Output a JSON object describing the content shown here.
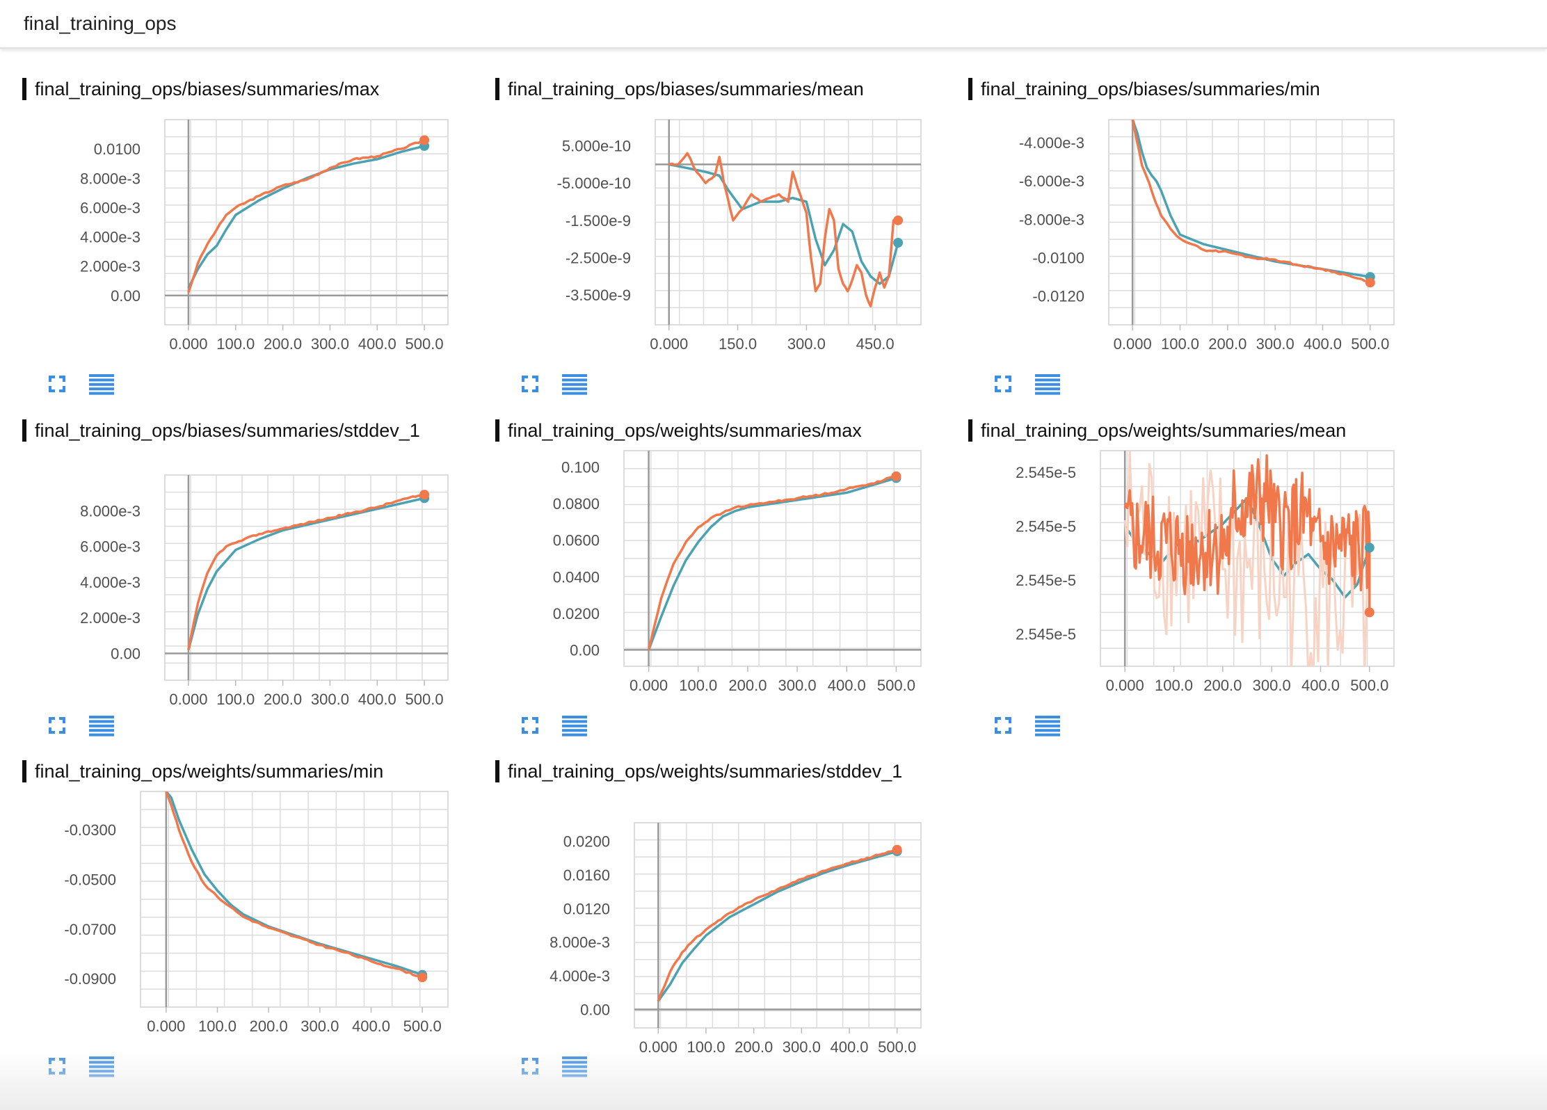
{
  "header": {
    "title": "final_training_ops"
  },
  "colors": {
    "run_a": "#f0784b",
    "run_b": "#4ba2b3",
    "icon": "#3c8ee0",
    "grid": "#dcdcdc",
    "axis": "#999999",
    "smooth_raw": "#f8d2c2"
  },
  "icons": {
    "expand": "fullscreen-icon",
    "data": "data-table-icon"
  },
  "cards": [
    {
      "title": "final_training_ops/biases/summaries/max",
      "x_ticks": [
        "0.000",
        "100.0",
        "200.0",
        "300.0",
        "400.0",
        "500.0"
      ],
      "y_ticks": [
        "0.0100",
        "8.000e-3",
        "6.000e-3",
        "4.000e-3",
        "2.000e-3",
        "0.00"
      ],
      "chart_data": {
        "type": "line",
        "xlim": [
          -50,
          550
        ],
        "ylim": [
          -0.002,
          0.012
        ],
        "y_tick_values": [
          0.01,
          0.008,
          0.006,
          0.004,
          0.002,
          0
        ],
        "x_tick_values": [
          0,
          100,
          200,
          300,
          400,
          500
        ],
        "noisy": false,
        "series": [
          {
            "color_key": "run_b",
            "x": [
              0,
              20,
              40,
              60,
              80,
              100,
              150,
              200,
              250,
              300,
              350,
              400,
              450,
              500
            ],
            "y": [
              0.0005,
              0.0018,
              0.0028,
              0.0034,
              0.0045,
              0.0055,
              0.0065,
              0.0073,
              0.008,
              0.0086,
              0.009,
              0.0093,
              0.0098,
              0.0102
            ]
          },
          {
            "color_key": "run_a",
            "x": [
              0,
              20,
              40,
              60,
              80,
              100,
              150,
              200,
              250,
              300,
              350,
              400,
              450,
              500
            ],
            "y": [
              0.0002,
              0.0022,
              0.0035,
              0.0045,
              0.0055,
              0.006,
              0.0068,
              0.0075,
              0.0079,
              0.0087,
              0.0093,
              0.0095,
              0.01,
              0.0106
            ]
          }
        ]
      }
    },
    {
      "title": "final_training_ops/biases/summaries/mean",
      "x_ticks": [
        "0.000",
        "150.0",
        "300.0",
        "450.0"
      ],
      "y_ticks": [
        "5.000e-10",
        "-5.000e-10",
        "-1.500e-9",
        "-2.500e-9",
        "-3.500e-9"
      ],
      "chart_data": {
        "type": "line",
        "xlim": [
          -30,
          550
        ],
        "ylim": [
          -4.3e-09,
          1.2e-09
        ],
        "y_tick_values": [
          5e-10,
          -5e-10,
          -1.5e-09,
          -2.5e-09,
          -3.5e-09
        ],
        "x_tick_values": [
          0,
          150,
          300,
          450
        ],
        "noisy": false,
        "series": [
          {
            "color_key": "run_b",
            "x": [
              0,
              40,
              80,
              110,
              130,
              160,
              200,
              240,
              270,
              300,
              320,
              340,
              360,
              380,
              400,
              420,
              440,
              460,
              480,
              500
            ],
            "y": [
              0.0,
              -1e-10,
              -2e-10,
              -3e-10,
              -7e-10,
              -1.2e-09,
              -1e-09,
              -1e-09,
              -9e-10,
              -1e-09,
              -2e-09,
              -2.7e-09,
              -2.3e-09,
              -1.6e-09,
              -1.8e-09,
              -2.6e-09,
              -3e-09,
              -3.2e-09,
              -3e-09,
              -2.1e-09
            ]
          },
          {
            "color_key": "run_a",
            "x": [
              0,
              20,
              40,
              60,
              80,
              100,
              110,
              120,
              140,
              160,
              180,
              200,
              220,
              240,
              260,
              270,
              280,
              300,
              310,
              320,
              330,
              340,
              350,
              360,
              370,
              380,
              390,
              400,
              410,
              420,
              430,
              440,
              450,
              460,
              470,
              480,
              490,
              500
            ],
            "y": [
              0.0,
              0.0,
              3e-10,
              -2e-10,
              -5e-10,
              -3e-10,
              2e-10,
              -5e-10,
              -1.5e-09,
              -1.2e-09,
              -8e-10,
              -1e-09,
              -9e-10,
              -8e-10,
              -1e-09,
              -2e-10,
              -6e-10,
              -1.3e-09,
              -2.5e-09,
              -3.4e-09,
              -3.2e-09,
              -2e-09,
              -1.2e-09,
              -1.5e-09,
              -2.8e-09,
              -3.2e-09,
              -3.4e-09,
              -3.1e-09,
              -2.7e-09,
              -2.9e-09,
              -3.5e-09,
              -3.8e-09,
              -3.3e-09,
              -2.9e-09,
              -3.3e-09,
              -3e-09,
              -1.5e-09,
              -1.5e-09
            ]
          }
        ]
      }
    },
    {
      "title": "final_training_ops/biases/summaries/min",
      "x_ticks": [
        "0.000",
        "100.0",
        "200.0",
        "300.0",
        "400.0",
        "500.0"
      ],
      "y_ticks": [
        "-4.000e-3",
        "-6.000e-3",
        "-8.000e-3",
        "-0.0100",
        "-0.0120"
      ],
      "chart_data": {
        "type": "line",
        "xlim": [
          -50,
          550
        ],
        "ylim": [
          -0.0135,
          -0.0028
        ],
        "y_tick_values": [
          -0.004,
          -0.006,
          -0.008,
          -0.01,
          -0.012
        ],
        "x_tick_values": [
          0,
          100,
          200,
          300,
          400,
          500
        ],
        "noisy": false,
        "series": [
          {
            "color_key": "run_b",
            "x": [
              0,
              10,
              20,
              30,
              40,
              50,
              60,
              80,
              100,
              150,
              200,
              250,
              300,
              350,
              400,
              450,
              500
            ],
            "y": [
              -0.0028,
              -0.0035,
              -0.0045,
              -0.0053,
              -0.0057,
              -0.006,
              -0.0065,
              -0.0078,
              -0.0088,
              -0.0093,
              -0.0096,
              -0.0099,
              -0.0102,
              -0.0104,
              -0.0106,
              -0.0108,
              -0.011
            ]
          },
          {
            "color_key": "run_a",
            "x": [
              0,
              10,
              20,
              30,
              40,
              50,
              60,
              80,
              100,
              150,
              200,
              250,
              300,
              350,
              400,
              450,
              500
            ],
            "y": [
              -0.0028,
              -0.004,
              -0.0052,
              -0.0058,
              -0.0065,
              -0.0072,
              -0.0078,
              -0.0085,
              -0.009,
              -0.0096,
              -0.0097,
              -0.01,
              -0.0101,
              -0.0104,
              -0.0106,
              -0.0109,
              -0.0113
            ]
          }
        ]
      }
    },
    {
      "title": "final_training_ops/biases/summaries/stddev_1",
      "x_ticks": [
        "0.000",
        "100.0",
        "200.0",
        "300.0",
        "400.0",
        "500.0"
      ],
      "y_ticks": [
        "8.000e-3",
        "6.000e-3",
        "4.000e-3",
        "2.000e-3",
        "0.00"
      ],
      "chart_data": {
        "type": "line",
        "xlim": [
          -50,
          550
        ],
        "ylim": [
          -0.0015,
          0.01
        ],
        "y_tick_values": [
          0.008,
          0.006,
          0.004,
          0.002,
          0
        ],
        "x_tick_values": [
          0,
          100,
          200,
          300,
          400,
          500
        ],
        "noisy": false,
        "series": [
          {
            "color_key": "run_b",
            "x": [
              0,
              20,
              40,
              60,
              80,
              100,
              150,
              200,
              250,
              300,
              350,
              400,
              450,
              500
            ],
            "y": [
              0.0002,
              0.0022,
              0.0036,
              0.0046,
              0.0052,
              0.0058,
              0.0064,
              0.0069,
              0.0072,
              0.0075,
              0.0078,
              0.0081,
              0.0084,
              0.0087
            ]
          },
          {
            "color_key": "run_a",
            "x": [
              0,
              20,
              40,
              60,
              80,
              100,
              150,
              200,
              250,
              300,
              350,
              400,
              450,
              500
            ],
            "y": [
              0.0002,
              0.0028,
              0.0045,
              0.0055,
              0.006,
              0.0062,
              0.0067,
              0.007,
              0.0073,
              0.0076,
              0.0079,
              0.0082,
              0.0086,
              0.0089
            ]
          }
        ]
      }
    },
    {
      "title": "final_training_ops/weights/summaries/max",
      "x_ticks": [
        "0.000",
        "100.0",
        "200.0",
        "300.0",
        "400.0",
        "500.0"
      ],
      "y_ticks": [
        "0.100",
        "0.0800",
        "0.0600",
        "0.0400",
        "0.0200",
        "0.00"
      ],
      "chart_data": {
        "type": "line",
        "xlim": [
          -50,
          550
        ],
        "ylim": [
          -0.009,
          0.109
        ],
        "y_tick_values": [
          0.1,
          0.08,
          0.06,
          0.04,
          0.02,
          0
        ],
        "x_tick_values": [
          0,
          100,
          200,
          300,
          400,
          500
        ],
        "noisy": false,
        "series": [
          {
            "color_key": "run_b",
            "x": [
              0,
              25,
              50,
              75,
              100,
              125,
              150,
              175,
              200,
              250,
              300,
              350,
              400,
              450,
              500
            ],
            "y": [
              0.0,
              0.018,
              0.035,
              0.049,
              0.059,
              0.067,
              0.073,
              0.076,
              0.078,
              0.08,
              0.082,
              0.084,
              0.086,
              0.09,
              0.094
            ]
          },
          {
            "color_key": "run_a",
            "x": [
              0,
              25,
              50,
              75,
              100,
              125,
              150,
              175,
              200,
              250,
              300,
              350,
              400,
              450,
              500
            ],
            "y": [
              0.0,
              0.028,
              0.047,
              0.059,
              0.067,
              0.072,
              0.075,
              0.078,
              0.079,
              0.081,
              0.083,
              0.085,
              0.088,
              0.091,
              0.095
            ]
          }
        ]
      }
    },
    {
      "title": "final_training_ops/weights/summaries/mean",
      "x_ticks": [
        "0.000",
        "100.0",
        "200.0",
        "300.0",
        "400.0",
        "500.0"
      ],
      "y_ticks": [
        "2.545e-5",
        "2.545e-5",
        "2.545e-5",
        "2.545e-5"
      ],
      "chart_data": {
        "type": "line",
        "xlim": [
          -50,
          550
        ],
        "ylim": [
          0.0,
          1.0
        ],
        "y_tick_values": [
          0.9,
          0.65,
          0.4,
          0.15
        ],
        "x_tick_values": [
          0,
          100,
          200,
          300,
          400,
          500
        ],
        "noisy": true,
        "noise_seed": 7,
        "series": [
          {
            "color_key": "run_b",
            "x": [
              0,
              25,
              50,
              75,
              100,
              125,
              150,
              175,
              200,
              225,
              250,
              275,
              300,
              325,
              350,
              375,
              400,
              425,
              450,
              475,
              500
            ],
            "y": [
              0.65,
              0.57,
              0.52,
              0.48,
              0.55,
              0.6,
              0.58,
              0.62,
              0.66,
              0.72,
              0.78,
              0.65,
              0.5,
              0.42,
              0.48,
              0.52,
              0.45,
              0.4,
              0.32,
              0.38,
              0.55
            ]
          },
          {
            "color_key": "run_a",
            "x": [
              0,
              500
            ],
            "y": [
              0.65,
              0.25
            ],
            "noise_amp": 0.22
          }
        ]
      }
    },
    {
      "title": "final_training_ops/weights/summaries/min",
      "x_ticks": [
        "0.000",
        "100.0",
        "200.0",
        "300.0",
        "400.0",
        "500.0"
      ],
      "y_ticks": [
        "-0.0300",
        "-0.0500",
        "-0.0700",
        "-0.0900"
      ],
      "chart_data": {
        "type": "line",
        "xlim": [
          -50,
          550
        ],
        "ylim": [
          -0.1015,
          -0.0145
        ],
        "y_tick_values": [
          -0.03,
          -0.05,
          -0.07,
          -0.09
        ],
        "x_tick_values": [
          0,
          100,
          200,
          300,
          400,
          500
        ],
        "noisy": false,
        "series": [
          {
            "color_key": "run_b",
            "x": [
              0,
              10,
              25,
              50,
              75,
              100,
              125,
              150,
              200,
              250,
              300,
              350,
              400,
              450,
              500
            ],
            "y": [
              -0.0145,
              -0.017,
              -0.026,
              -0.038,
              -0.048,
              -0.0545,
              -0.06,
              -0.064,
              -0.069,
              -0.0725,
              -0.076,
              -0.079,
              -0.082,
              -0.085,
              -0.0885
            ]
          },
          {
            "color_key": "run_a",
            "x": [
              0,
              10,
              25,
              50,
              75,
              100,
              125,
              150,
              200,
              250,
              300,
              350,
              400,
              450,
              500
            ],
            "y": [
              -0.0145,
              -0.02,
              -0.03,
              -0.043,
              -0.052,
              -0.057,
              -0.061,
              -0.065,
              -0.0695,
              -0.073,
              -0.0765,
              -0.0795,
              -0.083,
              -0.086,
              -0.0895
            ]
          }
        ]
      }
    },
    {
      "title": "final_training_ops/weights/summaries/stddev_1",
      "x_ticks": [
        "0.000",
        "100.0",
        "200.0",
        "300.0",
        "400.0",
        "500.0"
      ],
      "y_ticks": [
        "0.0200",
        "0.0160",
        "0.0120",
        "8.000e-3",
        "4.000e-3",
        "0.00"
      ],
      "chart_data": {
        "type": "line",
        "xlim": [
          -50,
          550
        ],
        "ylim": [
          -0.0022,
          0.0222
        ],
        "y_tick_values": [
          0.02,
          0.016,
          0.012,
          0.008,
          0.004,
          0
        ],
        "x_tick_values": [
          0,
          100,
          200,
          300,
          400,
          500
        ],
        "noisy": false,
        "series": [
          {
            "color_key": "run_b",
            "x": [
              0,
              25,
              50,
              75,
              100,
              150,
              200,
              250,
              300,
              350,
              400,
              450,
              500
            ],
            "y": [
              0.001,
              0.003,
              0.0055,
              0.0072,
              0.0088,
              0.011,
              0.0125,
              0.014,
              0.0152,
              0.0163,
              0.0172,
              0.018,
              0.0188
            ]
          },
          {
            "color_key": "run_a",
            "x": [
              0,
              25,
              50,
              75,
              100,
              150,
              200,
              250,
              300,
              350,
              400,
              450,
              500
            ],
            "y": [
              0.001,
              0.0045,
              0.0068,
              0.0083,
              0.0095,
              0.0115,
              0.013,
              0.0143,
              0.0155,
              0.0165,
              0.0174,
              0.0182,
              0.019
            ]
          }
        ]
      }
    }
  ]
}
